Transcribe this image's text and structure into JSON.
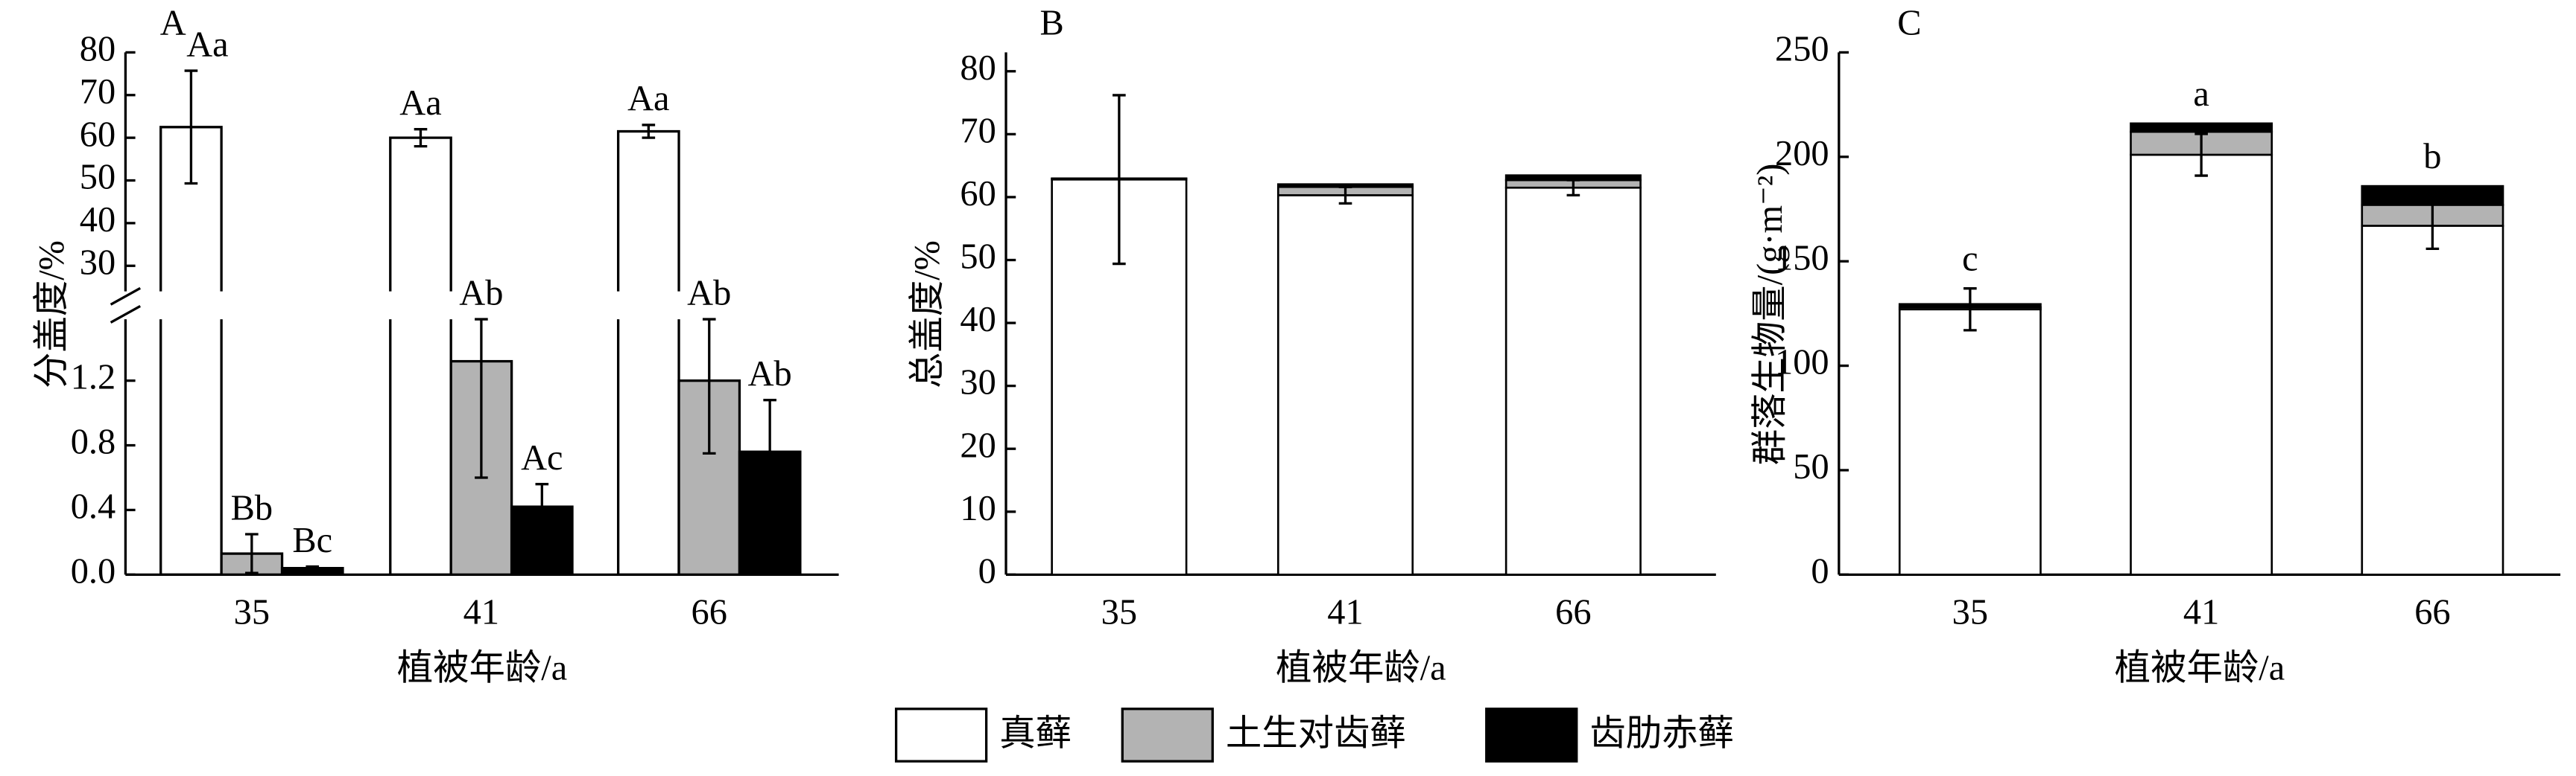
{
  "chart_data": [
    {
      "type": "broken-bar",
      "panel": "A",
      "xlabel": "植被年龄/a",
      "ylabel": "分盖度/%",
      "categories": [
        "35",
        "41",
        "66"
      ],
      "ylim": [
        24,
        80
      ],
      "yticks": [
        30,
        40,
        50,
        60,
        70,
        80
      ],
      "lower_ylim": [
        0,
        1.58
      ],
      "lower_yticks": [
        {
          "value": 0,
          "label": "0.0"
        },
        0.4,
        0.8,
        1.2
      ],
      "series": [
        {
          "name": "真藓",
          "color": "#ffffff",
          "values": [
            62.5,
            60,
            61.5
          ],
          "errors": [
            13.2,
            2,
            1.5
          ],
          "labels": [
            "Aa",
            "Aa",
            "Aa"
          ]
        },
        {
          "name": "土生对齿藓",
          "color": "#b3b3b3",
          "values": [
            0.13,
            1.32,
            1.2
          ],
          "errors": [
            0.12,
            0.72,
            0.45
          ],
          "labels": [
            "Bb",
            "Ab",
            "Ab"
          ]
        },
        {
          "name": "齿肋赤藓",
          "color": "#000000",
          "values": [
            0.04,
            0.42,
            0.76
          ],
          "errors": [
            0.01,
            0.14,
            0.32
          ],
          "labels": [
            "Bc",
            "Ac",
            "Ab"
          ]
        }
      ]
    },
    {
      "type": "stacked-bar",
      "panel": "B",
      "xlabel": "植被年龄/a",
      "ylabel": "总盖度/%",
      "categories": [
        "35",
        "41",
        "66"
      ],
      "ylim": [
        0,
        83
      ],
      "yticks": [
        0,
        10,
        20,
        30,
        40,
        50,
        60,
        70,
        80
      ],
      "series": [
        {
          "color": "#ffffff",
          "values": [
            62.8,
            60.3,
            61.5
          ],
          "errors": [
            13.4,
            1.3,
            1.2
          ]
        },
        {
          "color": "#b3b3b3",
          "values": [
            0.13,
            1.32,
            1.2
          ]
        },
        {
          "color": "#000000",
          "values": [
            0.04,
            0.42,
            0.76
          ]
        }
      ]
    },
    {
      "type": "stacked-bar",
      "panel": "C",
      "xlabel": "植被年龄/a",
      "ylabel": "群落生物量/(g·m⁻²)",
      "categories": [
        "35",
        "41",
        "66"
      ],
      "ylim": [
        0,
        250
      ],
      "yticks": [
        0,
        50,
        100,
        150,
        200,
        250
      ],
      "total_labels": [
        "c",
        "a",
        "b"
      ],
      "series": [
        {
          "color": "#ffffff",
          "values": [
            127,
            201,
            167
          ],
          "errors": [
            10,
            10,
            11
          ]
        },
        {
          "color": "#b3b3b3",
          "values": [
            1,
            11,
            10
          ]
        },
        {
          "color": "#000000",
          "values": [
            1.5,
            4,
            9
          ]
        }
      ]
    }
  ]
}
